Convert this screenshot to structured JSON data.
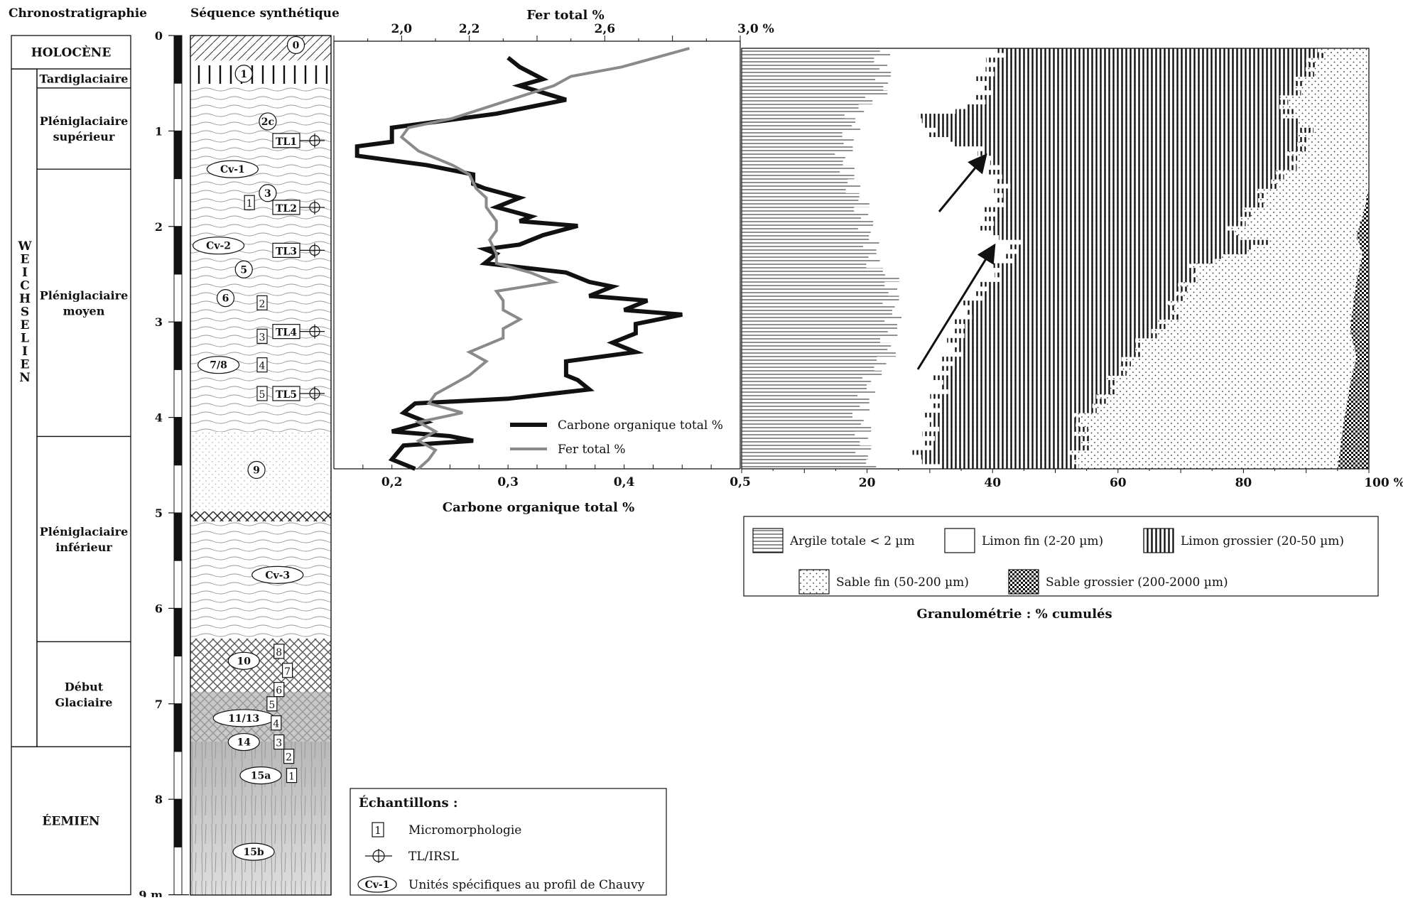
{
  "headers": {
    "chrono": "Chronostratigraphie",
    "sequence": "Séquence synthétique",
    "fer_axis_title": "Fer total %",
    "carbone_axis_title": "Carbone organique total %",
    "granulo_title": "Granulométrie : % cumulés"
  },
  "chrono_periods": [
    {
      "label": "HOLOCÈNE",
      "from": 0,
      "to": 0.35
    },
    {
      "label": "Tardiglaciaire",
      "from": 0.35,
      "to": 0.55
    },
    {
      "label": "Pléniglaciaire supérieur",
      "from": 0.55,
      "to": 1.4
    },
    {
      "label": "Pléniglaciaire moyen",
      "from": 1.4,
      "to": 4.2
    },
    {
      "label": "Pléniglaciaire inférieur",
      "from": 4.2,
      "to": 6.35
    },
    {
      "label": "Début Glaciaire",
      "from": 6.35,
      "to": 7.45
    },
    {
      "label": "ÉEMIEN",
      "from": 7.45,
      "to": 9.0
    }
  ],
  "weichselien_label": "WEICHSELIEN",
  "depth_axis": {
    "ticks": [
      "0",
      "1",
      "2",
      "3",
      "4",
      "5",
      "6",
      "7",
      "8"
    ],
    "end_label": "9 m"
  },
  "units": [
    {
      "label": "0",
      "depth": 0.1,
      "x": 0.75,
      "shape": "circle"
    },
    {
      "label": "1",
      "depth": 0.4,
      "x": 0.38,
      "shape": "circle"
    },
    {
      "label": "2c",
      "depth": 0.9,
      "x": 0.55,
      "shape": "circle"
    },
    {
      "label": "Cv-1",
      "depth": 1.4,
      "x": 0.3,
      "shape": "ellipse"
    },
    {
      "label": "3",
      "depth": 1.65,
      "x": 0.55,
      "shape": "circle"
    },
    {
      "label": "Cv-2",
      "depth": 2.2,
      "x": 0.2,
      "shape": "ellipse"
    },
    {
      "label": "5",
      "depth": 2.45,
      "x": 0.38,
      "shape": "circle"
    },
    {
      "label": "6",
      "depth": 2.75,
      "x": 0.25,
      "shape": "circle"
    },
    {
      "label": "7/8",
      "depth": 3.45,
      "x": 0.2,
      "shape": "ellipse"
    },
    {
      "label": "9",
      "depth": 4.55,
      "x": 0.47,
      "shape": "circle"
    },
    {
      "label": "Cv-3",
      "depth": 5.65,
      "x": 0.62,
      "shape": "ellipse"
    },
    {
      "label": "10",
      "depth": 6.55,
      "x": 0.38,
      "shape": "ellipse"
    },
    {
      "label": "11/13",
      "depth": 7.15,
      "x": 0.38,
      "shape": "ellipse"
    },
    {
      "label": "14",
      "depth": 7.4,
      "x": 0.38,
      "shape": "ellipse"
    },
    {
      "label": "15a",
      "depth": 7.75,
      "x": 0.5,
      "shape": "ellipse"
    },
    {
      "label": "15b",
      "depth": 8.55,
      "x": 0.45,
      "shape": "ellipse"
    }
  ],
  "tl_samples": [
    {
      "label": "TL1",
      "depth": 1.1
    },
    {
      "label": "TL2",
      "depth": 1.8
    },
    {
      "label": "TL3",
      "depth": 2.25
    },
    {
      "label": "TL4",
      "depth": 3.1
    },
    {
      "label": "TL5",
      "depth": 3.75
    }
  ],
  "micro_samples": [
    {
      "label": "1",
      "depth": 1.75,
      "x": 0.42
    },
    {
      "label": "2",
      "depth": 2.8,
      "x": 0.51
    },
    {
      "label": "3",
      "depth": 3.15,
      "x": 0.51
    },
    {
      "label": "4",
      "depth": 3.45,
      "x": 0.51
    },
    {
      "label": "5",
      "depth": 3.75,
      "x": 0.51
    },
    {
      "label": "8",
      "depth": 6.45,
      "x": 0.63
    },
    {
      "label": "7",
      "depth": 6.65,
      "x": 0.69
    },
    {
      "label": "6",
      "depth": 6.85,
      "x": 0.63
    },
    {
      "label": "5",
      "depth": 7.0,
      "x": 0.58
    },
    {
      "label": "4",
      "depth": 7.2,
      "x": 0.61
    },
    {
      "label": "3",
      "depth": 7.4,
      "x": 0.63
    },
    {
      "label": "2",
      "depth": 7.55,
      "x": 0.7
    },
    {
      "label": "1",
      "depth": 7.75,
      "x": 0.72
    }
  ],
  "echantillons": {
    "title": "Échantillons :",
    "micro_icon": "1",
    "micro_label": "Micromorphologie",
    "tl_label": "TL/IRSL",
    "cv_icon": "Cv-1",
    "cv_label": "Unités spécifiques au profil de Chauvy"
  },
  "chart_data": [
    {
      "type": "line",
      "title": "",
      "x_top": {
        "label": "Fer total %",
        "range": [
          1.8,
          3.0
        ],
        "ticks": [
          "2,0",
          "2,2",
          "2,6",
          "3,0 %"
        ],
        "tick_values": [
          2.0,
          2.2,
          2.6,
          3.0
        ]
      },
      "x_bottom": {
        "label": "Carbone organique total %",
        "range": [
          0.15,
          0.5
        ],
        "ticks": [
          "0,2",
          "0,3",
          "0,4",
          "0,5"
        ],
        "tick_values": [
          0.2,
          0.3,
          0.4,
          0.5
        ]
      },
      "ylabel": "",
      "ylim": [
        0,
        4.5
      ],
      "legend": {
        "placement": "bottom-right",
        "entries": [
          "Carbone organique total %",
          "Fer total %"
        ]
      },
      "series": [
        {
          "name": "Carbone organique total %",
          "color": "#111111",
          "axis": "bottom",
          "points": [
            [
              0.3,
              0.1
            ],
            [
              0.31,
              0.2
            ],
            [
              0.33,
              0.33
            ],
            [
              0.31,
              0.4
            ],
            [
              0.35,
              0.55
            ],
            [
              0.29,
              0.7
            ],
            [
              0.2,
              0.85
            ],
            [
              0.2,
              1.0
            ],
            [
              0.17,
              1.05
            ],
            [
              0.17,
              1.15
            ],
            [
              0.23,
              1.25
            ],
            [
              0.27,
              1.35
            ],
            [
              0.27,
              1.45
            ],
            [
              0.28,
              1.5
            ],
            [
              0.31,
              1.6
            ],
            [
              0.29,
              1.7
            ],
            [
              0.32,
              1.8
            ],
            [
              0.31,
              1.85
            ],
            [
              0.36,
              1.9
            ],
            [
              0.33,
              2.0
            ],
            [
              0.31,
              2.1
            ],
            [
              0.28,
              2.15
            ],
            [
              0.29,
              2.2
            ],
            [
              0.28,
              2.3
            ],
            [
              0.35,
              2.4
            ],
            [
              0.37,
              2.5
            ],
            [
              0.39,
              2.55
            ],
            [
              0.37,
              2.65
            ],
            [
              0.42,
              2.7
            ],
            [
              0.4,
              2.8
            ],
            [
              0.45,
              2.85
            ],
            [
              0.41,
              2.95
            ],
            [
              0.41,
              3.05
            ],
            [
              0.39,
              3.15
            ],
            [
              0.41,
              3.25
            ],
            [
              0.35,
              3.35
            ],
            [
              0.35,
              3.5
            ],
            [
              0.36,
              3.55
            ],
            [
              0.37,
              3.65
            ],
            [
              0.3,
              3.75
            ],
            [
              0.22,
              3.8
            ],
            [
              0.21,
              3.9
            ],
            [
              0.23,
              4.0
            ],
            [
              0.2,
              4.1
            ],
            [
              0.25,
              4.15
            ],
            [
              0.27,
              4.2
            ],
            [
              0.21,
              4.25
            ],
            [
              0.2,
              4.4
            ],
            [
              0.22,
              4.5
            ]
          ]
        },
        {
          "name": "Fer total %",
          "color": "#8a8a8a",
          "axis": "top",
          "points": [
            [
              2.85,
              0.0
            ],
            [
              2.75,
              0.1
            ],
            [
              2.65,
              0.2
            ],
            [
              2.5,
              0.3
            ],
            [
              2.45,
              0.4
            ],
            [
              2.15,
              0.75
            ],
            [
              2.02,
              0.85
            ],
            [
              2.0,
              0.95
            ],
            [
              2.05,
              1.1
            ],
            [
              2.15,
              1.25
            ],
            [
              2.2,
              1.35
            ],
            [
              2.22,
              1.5
            ],
            [
              2.25,
              1.6
            ],
            [
              2.25,
              1.7
            ],
            [
              2.28,
              1.85
            ],
            [
              2.28,
              1.95
            ],
            [
              2.26,
              2.05
            ],
            [
              2.28,
              2.2
            ],
            [
              2.28,
              2.3
            ],
            [
              2.38,
              2.4
            ],
            [
              2.45,
              2.5
            ],
            [
              2.28,
              2.6
            ],
            [
              2.3,
              2.7
            ],
            [
              2.3,
              2.8
            ],
            [
              2.35,
              2.9
            ],
            [
              2.3,
              3.0
            ],
            [
              2.3,
              3.1
            ],
            [
              2.2,
              3.25
            ],
            [
              2.25,
              3.35
            ],
            [
              2.2,
              3.5
            ],
            [
              2.15,
              3.6
            ],
            [
              2.1,
              3.7
            ],
            [
              2.08,
              3.8
            ],
            [
              2.18,
              3.9
            ],
            [
              2.05,
              4.0
            ],
            [
              2.1,
              4.1
            ],
            [
              2.05,
              4.2
            ],
            [
              2.1,
              4.3
            ],
            [
              2.08,
              4.4
            ],
            [
              2.05,
              4.5
            ]
          ]
        }
      ]
    },
    {
      "type": "bar",
      "title": "Granulométrie : % cumulés",
      "orientation": "horizontal-stacked-cumulative",
      "x": {
        "range": [
          0,
          100
        ],
        "ticks": [
          "20",
          "40",
          "60",
          "80",
          "100 %"
        ],
        "tick_values": [
          20,
          40,
          60,
          80,
          100
        ]
      },
      "ylim": [
        0,
        4.5
      ],
      "depth_step_m": 0.05,
      "series_names": [
        "Argile totale < 2 µm",
        "Limon fin (2-20 µm)",
        "Limon grossier (20-50 µm)",
        "Sable fin (50-200 µm)",
        "Sable grossier (200-2000 µm)"
      ],
      "legend": {
        "placement": "below",
        "entries": [
          "Argile totale < 2 µm",
          "Limon fin (2-20 µm)",
          "Limon grossier (20-50 µm)",
          "Sable fin (50-200 µm)",
          "Sable grossier (200-2000 µm)"
        ]
      },
      "cumulative_boundaries": [
        {
          "series": "Argile totale < 2 µm",
          "profile": [
            [
              0.0,
              22
            ],
            [
              0.4,
              23
            ],
            [
              0.7,
              18
            ],
            [
              1.0,
              17
            ],
            [
              1.2,
              16
            ],
            [
              1.5,
              18
            ],
            [
              1.9,
              20
            ],
            [
              2.3,
              21
            ],
            [
              2.5,
              24
            ],
            [
              3.0,
              24
            ],
            [
              3.3,
              23
            ],
            [
              3.6,
              20
            ],
            [
              4.0,
              19
            ],
            [
              4.5,
              20
            ]
          ]
        },
        {
          "series": "Limon fin (2-20 µm)",
          "profile": [
            [
              0.0,
              41
            ],
            [
              0.3,
              39
            ],
            [
              0.6,
              38
            ],
            [
              0.75,
              28
            ],
            [
              0.9,
              30
            ],
            [
              1.0,
              33
            ],
            [
              1.1,
              39
            ],
            [
              1.3,
              40
            ],
            [
              1.5,
              42
            ],
            [
              1.7,
              40
            ],
            [
              1.9,
              39
            ],
            [
              2.0,
              40
            ],
            [
              2.1,
              44
            ],
            [
              2.3,
              42
            ],
            [
              2.6,
              38
            ],
            [
              2.9,
              35
            ],
            [
              3.2,
              34
            ],
            [
              3.5,
              32
            ],
            [
              3.8,
              31
            ],
            [
              4.0,
              30
            ],
            [
              4.2,
              30
            ],
            [
              4.4,
              28
            ],
            [
              4.5,
              31
            ]
          ]
        },
        {
          "series": "Limon grossier (20-50 µm)",
          "profile": [
            [
              0.0,
              92
            ],
            [
              0.3,
              90
            ],
            [
              0.6,
              86
            ],
            [
              0.9,
              90
            ],
            [
              1.2,
              88
            ],
            [
              1.5,
              84
            ],
            [
              1.8,
              80
            ],
            [
              2.0,
              78
            ],
            [
              2.1,
              84
            ],
            [
              2.3,
              73
            ],
            [
              2.6,
              70
            ],
            [
              2.9,
              68
            ],
            [
              3.2,
              63
            ],
            [
              3.5,
              60
            ],
            [
              3.8,
              57
            ],
            [
              4.0,
              53
            ],
            [
              4.2,
              55
            ],
            [
              4.5,
              52
            ]
          ]
        },
        {
          "series": "Sable fin (50-200 µm)",
          "profile": [
            [
              0.0,
              100
            ],
            [
              1.5,
              100
            ],
            [
              1.8,
              99
            ],
            [
              2.0,
              98
            ],
            [
              2.2,
              99
            ],
            [
              2.5,
              98
            ],
            [
              3.0,
              97
            ],
            [
              3.3,
              98
            ],
            [
              3.6,
              97
            ],
            [
              4.0,
              96
            ],
            [
              4.5,
              95
            ]
          ]
        }
      ]
    }
  ],
  "colors": {
    "ink": "#111111",
    "fer_line": "#8a8a8a",
    "grey_fill": "#c8c8c8",
    "light_grey": "#e4e4e4"
  }
}
